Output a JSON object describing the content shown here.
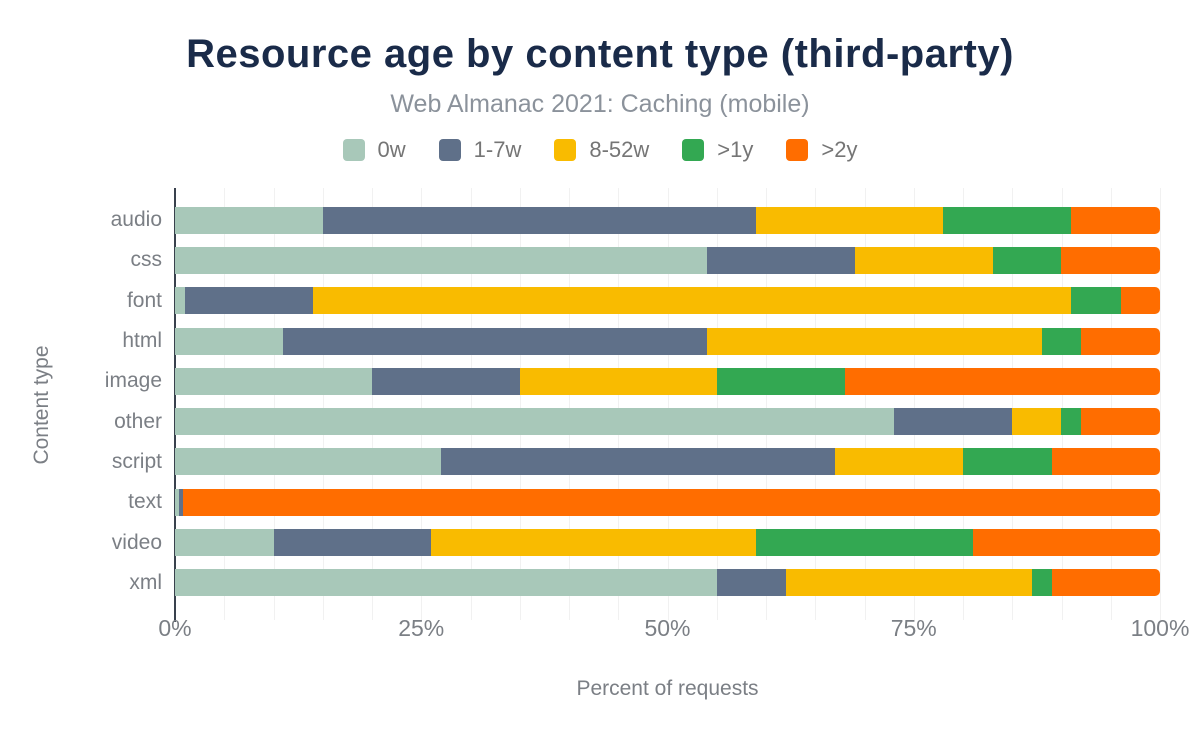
{
  "header": {
    "title": "Resource age by content type (third-party)",
    "subtitle": "Web Almanac 2021: Caching (mobile)"
  },
  "chart_data": {
    "type": "bar",
    "stacked": true,
    "orientation": "horizontal",
    "title": "Resource age by content type (third-party)",
    "subtitle": "Web Almanac 2021: Caching (mobile)",
    "xlabel": "Percent of requests",
    "ylabel": "Content type",
    "xlim": [
      0,
      100
    ],
    "x_tick_values": [
      0,
      25,
      50,
      75,
      100
    ],
    "x_tick_labels": [
      "0%",
      "25%",
      "50%",
      "75%",
      "100%"
    ],
    "grid": "vertical gridlines every 5%",
    "legend_position": "top",
    "categories": [
      "audio",
      "css",
      "font",
      "html",
      "image",
      "other",
      "script",
      "text",
      "video",
      "xml"
    ],
    "series": [
      {
        "name": "0w",
        "color": "#a8c8b9",
        "values": [
          15,
          54,
          1,
          11,
          20,
          73,
          27,
          0.4,
          10,
          55
        ]
      },
      {
        "name": "1-7w",
        "color": "#5f7089",
        "values": [
          44,
          15,
          13,
          43,
          15,
          12,
          40,
          0.4,
          16,
          7
        ]
      },
      {
        "name": "8-52w",
        "color": "#f9bb00",
        "values": [
          19,
          14,
          77,
          34,
          20,
          5,
          13,
          0,
          33,
          25
        ]
      },
      {
        "name": ">1y",
        "color": "#33a852",
        "values": [
          13,
          7,
          5,
          4,
          13,
          2,
          9,
          0,
          22,
          2
        ]
      },
      {
        "name": ">2y",
        "color": "#ff6d00",
        "values": [
          9,
          10,
          4,
          8,
          32,
          8,
          11,
          99.2,
          19,
          11
        ]
      }
    ]
  },
  "style": {
    "title_color": "#1a2b49",
    "subtitle_color": "#8b929b",
    "label_color": "#7b7f85",
    "axis_color": "#39414d",
    "gridline_color": "#f1f1f1",
    "background": "#ffffff"
  }
}
